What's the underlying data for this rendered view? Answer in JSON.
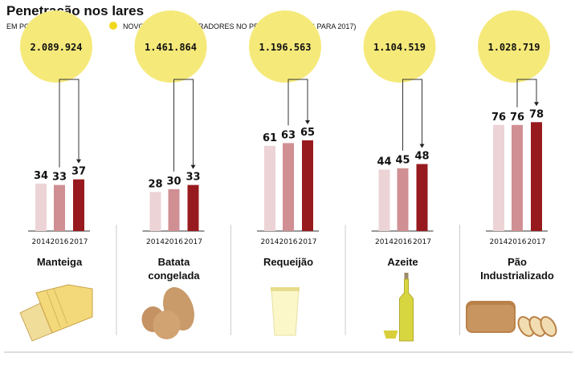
{
  "header": {
    "title": "Penetração nos lares",
    "subtitle": "EM PORCENTAGEM",
    "legend": "NOVOS LARES COMPRADORES NO PERÍODO (DE 2016 PARA 2017)"
  },
  "colors": {
    "bubble": "#f5e97a",
    "legend_dot": "#f2d81d",
    "bar_2014": "#ecd3d5",
    "bar_2016": "#d08f93",
    "bar_2017": "#971b1e"
  },
  "chart_data": {
    "type": "bar",
    "categories": [
      "2014",
      "2016",
      "2017"
    ],
    "ylabel": "EM PORCENTAGEM",
    "panels": [
      {
        "name": "Manteiga",
        "values": [
          34,
          33,
          37
        ],
        "new_households": "2.089.924",
        "icon": "butter"
      },
      {
        "name": "Batata congelada",
        "values": [
          28,
          30,
          33
        ],
        "new_households": "1.461.864",
        "icon": "potato"
      },
      {
        "name": "Requeijão",
        "values": [
          61,
          63,
          65
        ],
        "new_households": "1.196.563",
        "icon": "cream-cheese-cup"
      },
      {
        "name": "Azeite",
        "values": [
          44,
          45,
          48
        ],
        "new_households": "1.104.519",
        "icon": "olive-oil-bottle"
      },
      {
        "name": "Pão Industrializado",
        "values": [
          76,
          76,
          78
        ],
        "new_households": "1.028.719",
        "icon": "bread"
      }
    ]
  }
}
